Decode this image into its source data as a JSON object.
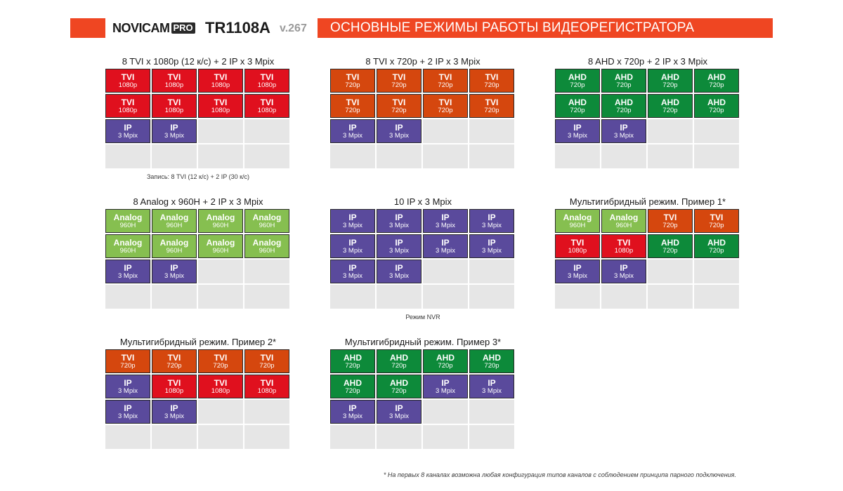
{
  "header": {
    "brand": "NOVICAM",
    "brand_pro": "PRO",
    "model": "TR1108A",
    "version": "v.267",
    "title": "ОСНОВНЫЕ РЕЖИМЫ РАБОТЫ ВИДЕОРЕГИСТРАТОРА",
    "accent_color": "#ef4622"
  },
  "colors": {
    "tvi_1080p": "#e0101e",
    "tvi_720p": "#d5470e",
    "ahd": "#0d8a3a",
    "ip": "#5a4a9c",
    "analog": "#86bf50",
    "empty": "#e6e6e6"
  },
  "sections": [
    {
      "title": "8 TVI x 1080p (12 к/с) + 2 IP x 3 Mpix",
      "note": "Запись: 8 TVI (12 к/с) + 2 IP (30 к/с)",
      "cells": [
        {
          "type": "TVI",
          "res": "1080p",
          "kind": "tvi1080"
        },
        {
          "type": "TVI",
          "res": "1080p",
          "kind": "tvi1080"
        },
        {
          "type": "TVI",
          "res": "1080p",
          "kind": "tvi1080"
        },
        {
          "type": "TVI",
          "res": "1080p",
          "kind": "tvi1080"
        },
        {
          "type": "TVI",
          "res": "1080p",
          "kind": "tvi1080"
        },
        {
          "type": "TVI",
          "res": "1080p",
          "kind": "tvi1080"
        },
        {
          "type": "TVI",
          "res": "1080p",
          "kind": "tvi1080"
        },
        {
          "type": "TVI",
          "res": "1080p",
          "kind": "tvi1080"
        },
        {
          "type": "IP",
          "res": "3 Mpix",
          "kind": "ip"
        },
        {
          "type": "IP",
          "res": "3 Mpix",
          "kind": "ip"
        },
        {
          "kind": "empty"
        },
        {
          "kind": "empty"
        },
        {
          "kind": "empty"
        },
        {
          "kind": "empty"
        },
        {
          "kind": "empty"
        },
        {
          "kind": "empty"
        }
      ]
    },
    {
      "title": "8 TVI x 720p + 2 IP x 3 Mpix",
      "note": "",
      "cells": [
        {
          "type": "TVI",
          "res": "720p",
          "kind": "tvi720"
        },
        {
          "type": "TVI",
          "res": "720p",
          "kind": "tvi720"
        },
        {
          "type": "TVI",
          "res": "720p",
          "kind": "tvi720"
        },
        {
          "type": "TVI",
          "res": "720p",
          "kind": "tvi720"
        },
        {
          "type": "TVI",
          "res": "720p",
          "kind": "tvi720"
        },
        {
          "type": "TVI",
          "res": "720p",
          "kind": "tvi720"
        },
        {
          "type": "TVI",
          "res": "720p",
          "kind": "tvi720"
        },
        {
          "type": "TVI",
          "res": "720p",
          "kind": "tvi720"
        },
        {
          "type": "IP",
          "res": "3 Mpix",
          "kind": "ip"
        },
        {
          "type": "IP",
          "res": "3 Mpix",
          "kind": "ip"
        },
        {
          "kind": "empty"
        },
        {
          "kind": "empty"
        },
        {
          "kind": "empty"
        },
        {
          "kind": "empty"
        },
        {
          "kind": "empty"
        },
        {
          "kind": "empty"
        }
      ]
    },
    {
      "title": "8 AHD x 720p + 2 IP x 3 Mpix",
      "note": "",
      "cells": [
        {
          "type": "AHD",
          "res": "720p",
          "kind": "ahd"
        },
        {
          "type": "AHD",
          "res": "720p",
          "kind": "ahd"
        },
        {
          "type": "AHD",
          "res": "720p",
          "kind": "ahd"
        },
        {
          "type": "AHD",
          "res": "720p",
          "kind": "ahd"
        },
        {
          "type": "AHD",
          "res": "720p",
          "kind": "ahd"
        },
        {
          "type": "AHD",
          "res": "720p",
          "kind": "ahd"
        },
        {
          "type": "AHD",
          "res": "720p",
          "kind": "ahd"
        },
        {
          "type": "AHD",
          "res": "720p",
          "kind": "ahd"
        },
        {
          "type": "IP",
          "res": "3 Mpix",
          "kind": "ip"
        },
        {
          "type": "IP",
          "res": "3 Mpix",
          "kind": "ip"
        },
        {
          "kind": "empty"
        },
        {
          "kind": "empty"
        },
        {
          "kind": "empty"
        },
        {
          "kind": "empty"
        },
        {
          "kind": "empty"
        },
        {
          "kind": "empty"
        }
      ]
    },
    {
      "title": "8 Analog x 960H + 2 IP x 3 Mpix",
      "note": "",
      "cells": [
        {
          "type": "Analog",
          "res": "960H",
          "kind": "analog"
        },
        {
          "type": "Analog",
          "res": "960H",
          "kind": "analog"
        },
        {
          "type": "Analog",
          "res": "960H",
          "kind": "analog"
        },
        {
          "type": "Analog",
          "res": "960H",
          "kind": "analog"
        },
        {
          "type": "Analog",
          "res": "960H",
          "kind": "analog"
        },
        {
          "type": "Analog",
          "res": "960H",
          "kind": "analog"
        },
        {
          "type": "Analog",
          "res": "960H",
          "kind": "analog"
        },
        {
          "type": "Analog",
          "res": "960H",
          "kind": "analog"
        },
        {
          "type": "IP",
          "res": "3 Mpix",
          "kind": "ip"
        },
        {
          "type": "IP",
          "res": "3 Mpix",
          "kind": "ip"
        },
        {
          "kind": "empty"
        },
        {
          "kind": "empty"
        },
        {
          "kind": "empty"
        },
        {
          "kind": "empty"
        },
        {
          "kind": "empty"
        },
        {
          "kind": "empty"
        }
      ]
    },
    {
      "title": "10 IP x 3 Mpix",
      "note": "Режим NVR",
      "cells": [
        {
          "type": "IP",
          "res": "3 Mpix",
          "kind": "ip"
        },
        {
          "type": "IP",
          "res": "3 Mpix",
          "kind": "ip"
        },
        {
          "type": "IP",
          "res": "3 Mpix",
          "kind": "ip"
        },
        {
          "type": "IP",
          "res": "3 Mpix",
          "kind": "ip"
        },
        {
          "type": "IP",
          "res": "3 Mpix",
          "kind": "ip"
        },
        {
          "type": "IP",
          "res": "3 Mpix",
          "kind": "ip"
        },
        {
          "type": "IP",
          "res": "3 Mpix",
          "kind": "ip"
        },
        {
          "type": "IP",
          "res": "3 Mpix",
          "kind": "ip"
        },
        {
          "type": "IP",
          "res": "3 Mpix",
          "kind": "ip"
        },
        {
          "type": "IP",
          "res": "3 Mpix",
          "kind": "ip"
        },
        {
          "kind": "empty"
        },
        {
          "kind": "empty"
        },
        {
          "kind": "empty"
        },
        {
          "kind": "empty"
        },
        {
          "kind": "empty"
        },
        {
          "kind": "empty"
        }
      ]
    },
    {
      "title": "Мультигибридный режим. Пример 1*",
      "note": "",
      "cells": [
        {
          "type": "Analog",
          "res": "960H",
          "kind": "analog"
        },
        {
          "type": "Analog",
          "res": "960H",
          "kind": "analog"
        },
        {
          "type": "TVI",
          "res": "720p",
          "kind": "tvi720"
        },
        {
          "type": "TVI",
          "res": "720p",
          "kind": "tvi720"
        },
        {
          "type": "TVI",
          "res": "1080p",
          "kind": "tvi1080"
        },
        {
          "type": "TVI",
          "res": "1080p",
          "kind": "tvi1080"
        },
        {
          "type": "AHD",
          "res": "720p",
          "kind": "ahd"
        },
        {
          "type": "AHD",
          "res": "720p",
          "kind": "ahd"
        },
        {
          "type": "IP",
          "res": "3 Mpix",
          "kind": "ip"
        },
        {
          "type": "IP",
          "res": "3 Mpix",
          "kind": "ip"
        },
        {
          "kind": "empty"
        },
        {
          "kind": "empty"
        },
        {
          "kind": "empty"
        },
        {
          "kind": "empty"
        },
        {
          "kind": "empty"
        },
        {
          "kind": "empty"
        }
      ]
    },
    {
      "title": "Мультигибридный режим. Пример 2*",
      "note": "",
      "cells": [
        {
          "type": "TVI",
          "res": "720p",
          "kind": "tvi720"
        },
        {
          "type": "TVI",
          "res": "720p",
          "kind": "tvi720"
        },
        {
          "type": "TVI",
          "res": "720p",
          "kind": "tvi720"
        },
        {
          "type": "TVI",
          "res": "720p",
          "kind": "tvi720"
        },
        {
          "type": "IP",
          "res": "3 Mpix",
          "kind": "ip"
        },
        {
          "type": "TVI",
          "res": "1080p",
          "kind": "tvi1080"
        },
        {
          "type": "TVI",
          "res": "1080p",
          "kind": "tvi1080"
        },
        {
          "type": "TVI",
          "res": "1080p",
          "kind": "tvi1080"
        },
        {
          "type": "IP",
          "res": "3 Mpix",
          "kind": "ip"
        },
        {
          "type": "IP",
          "res": "3 Mpix",
          "kind": "ip"
        },
        {
          "kind": "empty"
        },
        {
          "kind": "empty"
        },
        {
          "kind": "empty"
        },
        {
          "kind": "empty"
        },
        {
          "kind": "empty"
        },
        {
          "kind": "empty"
        }
      ]
    },
    {
      "title": "Мультигибридный режим. Пример 3*",
      "note": "",
      "cells": [
        {
          "type": "AHD",
          "res": "720p",
          "kind": "ahd"
        },
        {
          "type": "AHD",
          "res": "720p",
          "kind": "ahd"
        },
        {
          "type": "AHD",
          "res": "720p",
          "kind": "ahd"
        },
        {
          "type": "AHD",
          "res": "720p",
          "kind": "ahd"
        },
        {
          "type": "AHD",
          "res": "720p",
          "kind": "ahd"
        },
        {
          "type": "AHD",
          "res": "720p",
          "kind": "ahd"
        },
        {
          "type": "IP",
          "res": "3 Mpix",
          "kind": "ip"
        },
        {
          "type": "IP",
          "res": "3 Mpix",
          "kind": "ip"
        },
        {
          "type": "IP",
          "res": "3 Mpix",
          "kind": "ip"
        },
        {
          "type": "IP",
          "res": "3 Mpix",
          "kind": "ip"
        },
        {
          "kind": "empty"
        },
        {
          "kind": "empty"
        },
        {
          "kind": "empty"
        },
        {
          "kind": "empty"
        },
        {
          "kind": "empty"
        },
        {
          "kind": "empty"
        }
      ]
    }
  ],
  "footnote": "* На первых 8 каналах возможна любая конфигурация типов каналов с соблюдением принципа парного подключения."
}
